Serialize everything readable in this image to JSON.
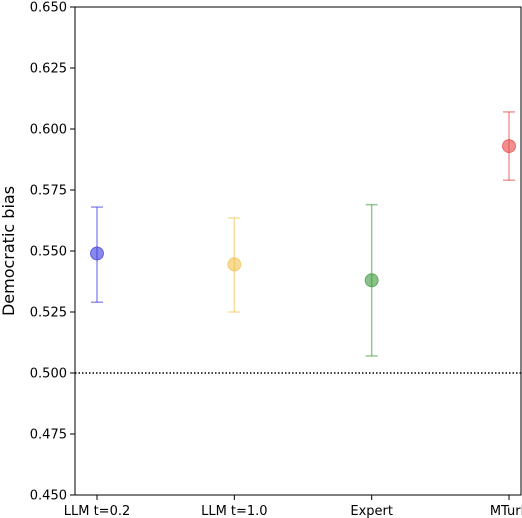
{
  "chart_data": {
    "type": "scatter",
    "categories": [
      "LLM t=0.2",
      "LLM t=1.0",
      "Expert",
      "MTurk"
    ],
    "ylabel": "Democratic bias",
    "xlabel": "",
    "title": "",
    "ylim": [
      0.45,
      0.65
    ],
    "yticks": [
      0.45,
      0.475,
      0.5,
      0.525,
      0.55,
      0.575,
      0.6,
      0.625,
      0.65
    ],
    "ytick_labels": [
      "0.450",
      "0.475",
      "0.500",
      "0.525",
      "0.550",
      "0.575",
      "0.600",
      "0.625",
      "0.650"
    ],
    "points": [
      {
        "category": "LLM t=0.2",
        "value": 0.549,
        "err_low": 0.529,
        "err_high": 0.568,
        "color": "#3b3be0"
      },
      {
        "category": "LLM t=1.0",
        "value": 0.5445,
        "err_low": 0.525,
        "err_high": 0.5635,
        "color": "#f2c14e"
      },
      {
        "category": "Expert",
        "value": 0.538,
        "err_low": 0.507,
        "err_high": 0.569,
        "color": "#3a9a3a"
      },
      {
        "category": "MTurk",
        "value": 0.593,
        "err_low": 0.579,
        "err_high": 0.607,
        "color": "#e84545"
      }
    ],
    "reference_line": {
      "value": 0.5,
      "style": "dotted",
      "color": "#000000"
    },
    "grid": false,
    "legend": "none"
  }
}
